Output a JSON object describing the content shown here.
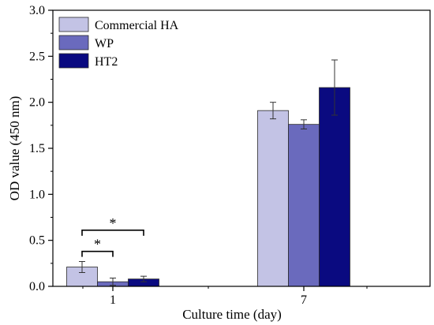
{
  "chart_data": {
    "type": "bar",
    "xlabel": "Culture time (day)",
    "ylabel": "OD value (450 nm)",
    "ylim": [
      0,
      3.0
    ],
    "yticks": [
      "0.0",
      "0.5",
      "1.0",
      "1.5",
      "2.0",
      "2.5",
      "3.0"
    ],
    "categories": [
      "1",
      "7"
    ],
    "series": [
      {
        "name": "Commercial HA",
        "color": "#c3c3e5",
        "values": [
          0.21,
          1.91
        ],
        "errors": [
          0.06,
          0.09
        ]
      },
      {
        "name": "WP",
        "color": "#6a6abd",
        "values": [
          0.05,
          1.76
        ],
        "errors": [
          0.04,
          0.05
        ]
      },
      {
        "name": "HT2",
        "color": "#0a0a80",
        "values": [
          0.08,
          2.16
        ],
        "errors": [
          0.03,
          0.3
        ]
      }
    ],
    "legend": "top-left",
    "grid": false,
    "annotations": [
      {
        "text": "*",
        "category": "1",
        "from_series": 0,
        "to_series": 1,
        "y": 0.38
      },
      {
        "text": "*",
        "category": "1",
        "from_series": 0,
        "to_series": 2,
        "y": 0.61
      }
    ]
  }
}
